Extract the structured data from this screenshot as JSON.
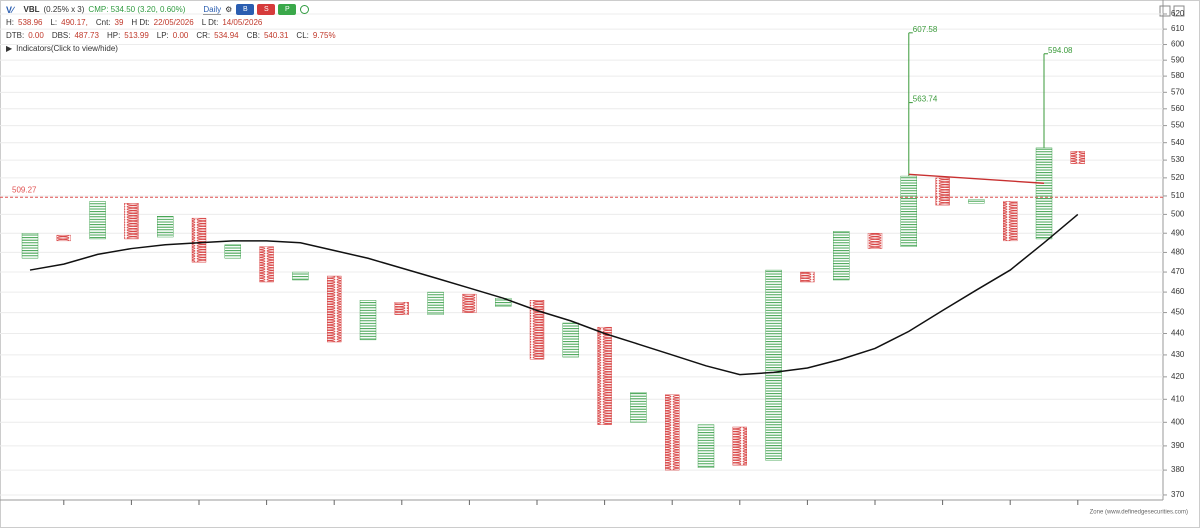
{
  "header": {
    "symbol": "VBL",
    "box": "(0.25% x 3)",
    "cmp": "CMP: 534.50 (3.20, 0.60%)",
    "timeframe": "Daily",
    "buttons": [
      "B",
      "S",
      "P"
    ],
    "stats1": [
      [
        "H:",
        "538.96"
      ],
      [
        "L:",
        "490.17,"
      ],
      [
        "Cnt:",
        "39"
      ],
      [
        "H Dt:",
        "22/05/2026"
      ],
      [
        "L Dt:",
        "14/05/2026"
      ]
    ],
    "stats2": [
      [
        "DTB:",
        "0.00"
      ],
      [
        "DBS:",
        "487.73"
      ],
      [
        "HP:",
        "513.99"
      ],
      [
        "LP:",
        "0.00"
      ],
      [
        "CR:",
        "534.94"
      ],
      [
        "CB:",
        "540.31"
      ],
      [
        "CL:",
        "9.75%"
      ]
    ],
    "indicators": "Indicators(Click to view/hide)"
  },
  "footer": "Zone (www.definedgesecurities.com)",
  "chart_data": {
    "type": "pnf",
    "log_scale": true,
    "grid": true,
    "ylim": [
      368,
      626
    ],
    "yticks": [
      370,
      380,
      390,
      400,
      410,
      420,
      430,
      440,
      450,
      460,
      470,
      480,
      490,
      500,
      510,
      520,
      530,
      540,
      550,
      560,
      570,
      580,
      590,
      600,
      610,
      620
    ],
    "x_color": "#2e9a3e",
    "o_color": "#d63b3b",
    "columns": [
      {
        "kind": "X",
        "high": 490,
        "low": 477
      },
      {
        "kind": "O",
        "high": 489,
        "low": 486
      },
      {
        "kind": "X",
        "high": 507,
        "low": 487
      },
      {
        "kind": "O",
        "high": 506,
        "low": 487
      },
      {
        "kind": "X",
        "high": 499,
        "low": 488
      },
      {
        "kind": "O",
        "high": 498,
        "low": 475
      },
      {
        "kind": "X",
        "high": 484,
        "low": 477
      },
      {
        "kind": "O",
        "high": 483,
        "low": 465
      },
      {
        "kind": "X",
        "high": 470,
        "low": 466
      },
      {
        "kind": "O",
        "high": 468,
        "low": 436
      },
      {
        "kind": "X",
        "high": 456,
        "low": 437
      },
      {
        "kind": "O",
        "high": 455,
        "low": 449
      },
      {
        "kind": "X",
        "high": 460,
        "low": 449
      },
      {
        "kind": "O",
        "high": 459,
        "low": 450
      },
      {
        "kind": "X",
        "high": 457,
        "low": 453
      },
      {
        "kind": "O",
        "high": 456,
        "low": 428
      },
      {
        "kind": "X",
        "high": 445,
        "low": 429
      },
      {
        "kind": "O",
        "high": 443,
        "low": 399
      },
      {
        "kind": "X",
        "high": 413,
        "low": 400
      },
      {
        "kind": "O",
        "high": 412,
        "low": 380
      },
      {
        "kind": "X",
        "high": 399,
        "low": 381
      },
      {
        "kind": "O",
        "high": 398,
        "low": 382
      },
      {
        "kind": "X",
        "high": 471,
        "low": 384
      },
      {
        "kind": "O",
        "high": 470,
        "low": 465
      },
      {
        "kind": "X",
        "high": 491,
        "low": 466
      },
      {
        "kind": "O",
        "high": 490,
        "low": 482
      },
      {
        "kind": "X",
        "high": 521,
        "low": 483,
        "targets": [
          607.58,
          563.74
        ],
        "trend": 522
      },
      {
        "kind": "O",
        "high": 520,
        "low": 505
      },
      {
        "kind": "X",
        "high": 508,
        "low": 506
      },
      {
        "kind": "O",
        "high": 507,
        "low": 486
      },
      {
        "kind": "X",
        "high": 537,
        "low": 487,
        "targets": [
          594.08
        ],
        "trend": 517
      },
      {
        "kind": "O",
        "high": 535,
        "low": 528
      }
    ],
    "ma": {
      "color": "#111111",
      "values": [
        471,
        474,
        479,
        482,
        484,
        485,
        486,
        486,
        485,
        481,
        477,
        472,
        467,
        462,
        457,
        451,
        446,
        440,
        435,
        430,
        425,
        421,
        422,
        424,
        428,
        433,
        441,
        451,
        461,
        471,
        485,
        500
      ]
    },
    "ref_line": {
      "value": 509.27,
      "color": "#e05050"
    },
    "target_color": "#3a9a3a",
    "trend_color": "#c83030"
  }
}
